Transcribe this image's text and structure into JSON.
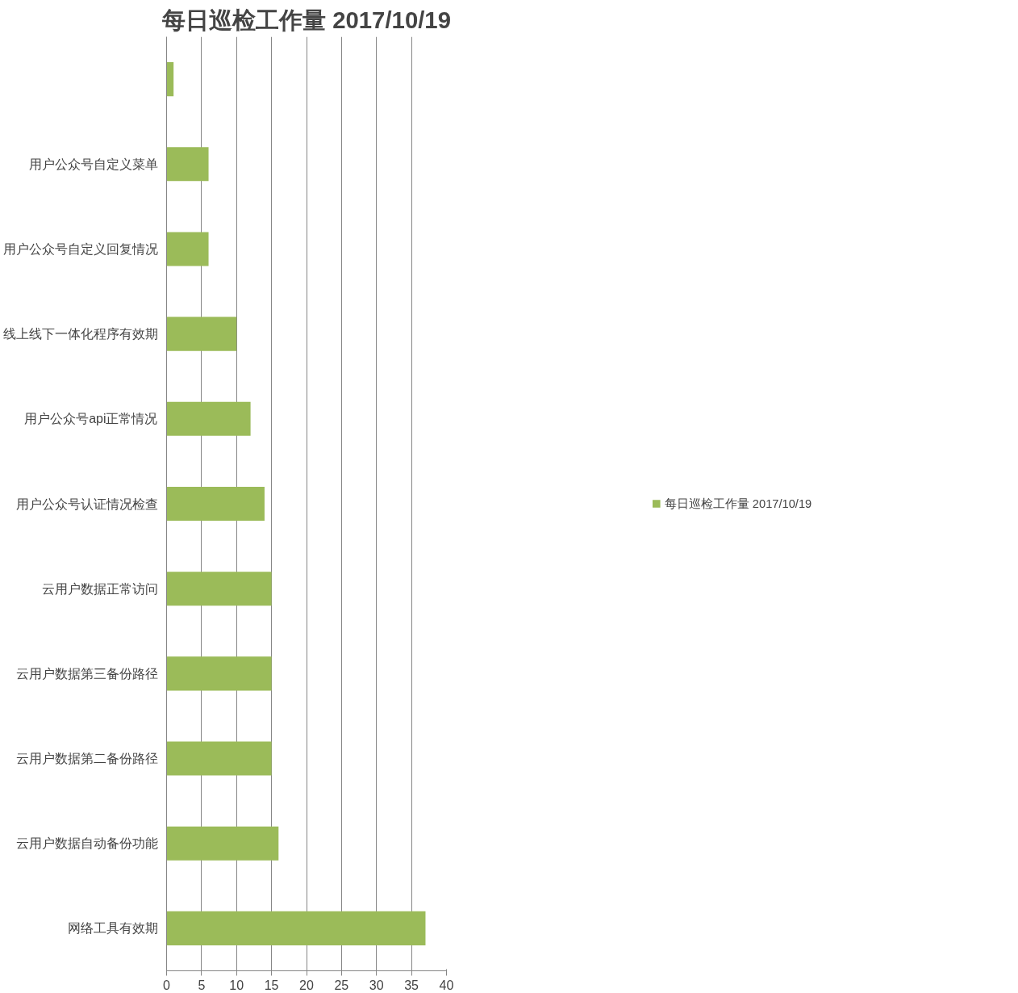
{
  "chart_data": {
    "type": "bar",
    "orientation": "horizontal",
    "title": "每日巡检工作量 2017/10/19",
    "categories": [
      null,
      "用户公众号自定义菜单",
      "用户公众号自定义回复情况",
      "线上线下一体化程序有效期",
      "用户公众号api正常情况",
      "用户公众号认证情况检查",
      "云用户数据正常访问",
      "云用户数据第三备份路径",
      "云用户数据第二备份路径",
      "云用户数据自动备份功能",
      "网络工具有效期"
    ],
    "series": [
      {
        "name": "每日巡检工作量 2017/10/19",
        "color": "#9bbb59",
        "values": [
          1,
          6,
          6,
          10,
          12,
          14,
          15,
          15,
          15,
          16,
          37
        ]
      }
    ],
    "xlim": [
      0,
      40
    ],
    "xticks": [
      0,
      5,
      10,
      15,
      20,
      25,
      30,
      35,
      40
    ],
    "grid": "x",
    "legend": "right"
  }
}
